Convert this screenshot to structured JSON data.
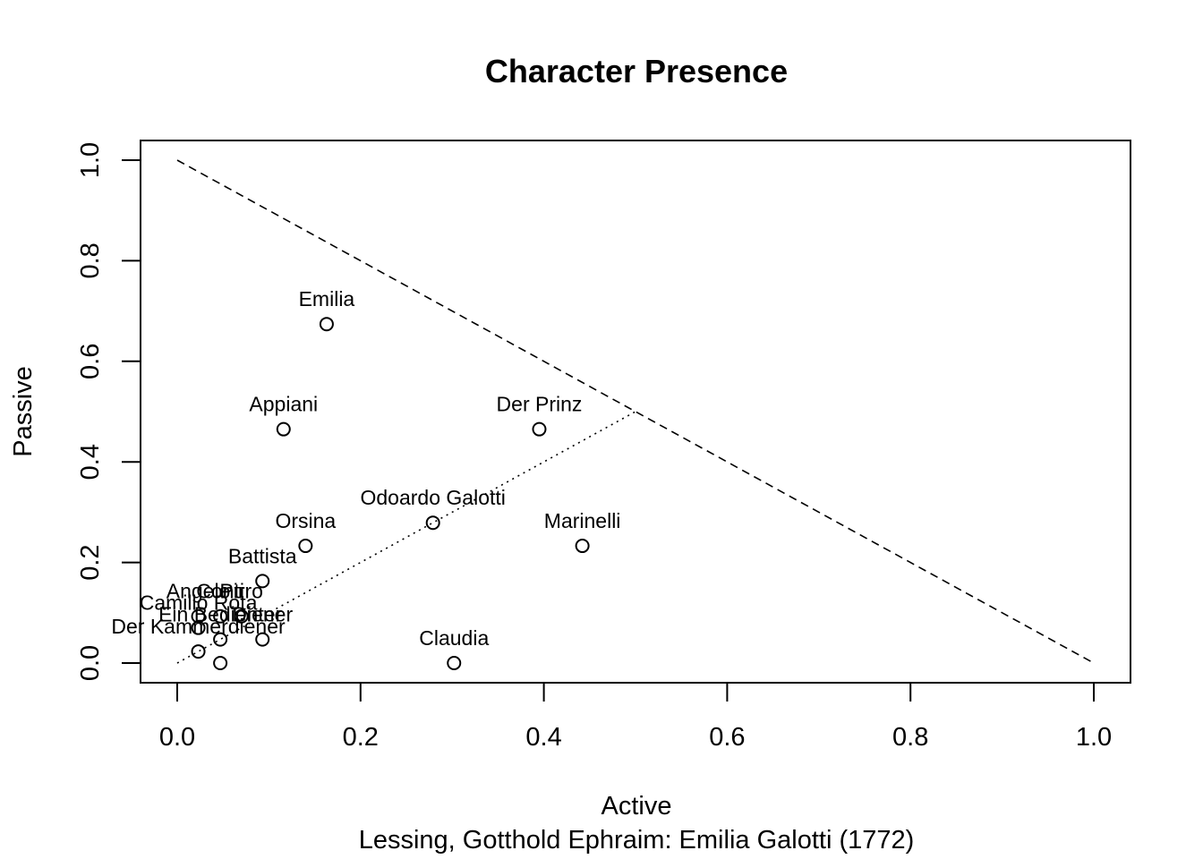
{
  "chart_data": {
    "type": "scatter",
    "title": "Character Presence",
    "xlabel": "Active",
    "ylabel": "Passive",
    "subtitle": "Lessing, Gotthold Ephraim: Emilia Galotti (1772)",
    "xlim": [
      0,
      1
    ],
    "ylim": [
      0,
      1
    ],
    "x_ticks": [
      "0.0",
      "0.2",
      "0.4",
      "0.6",
      "0.8",
      "1.0"
    ],
    "y_ticks": [
      "0.0",
      "0.2",
      "0.4",
      "0.6",
      "0.8",
      "1.0"
    ],
    "grid": false,
    "reference_lines": [
      {
        "style": "dashed",
        "from": [
          0,
          1
        ],
        "to": [
          1,
          0
        ]
      },
      {
        "style": "dotted",
        "from": [
          0,
          0
        ],
        "to": [
          0.5,
          0.5
        ]
      }
    ],
    "points": [
      {
        "label": "Emilia",
        "x": 0.163,
        "y": 0.674
      },
      {
        "label": "Appiani",
        "x": 0.116,
        "y": 0.465
      },
      {
        "label": "Der Prinz",
        "x": 0.395,
        "y": 0.465
      },
      {
        "label": "Odoardo Galotti",
        "x": 0.279,
        "y": 0.279
      },
      {
        "label": "Orsina",
        "x": 0.14,
        "y": 0.233
      },
      {
        "label": "Marinelli",
        "x": 0.442,
        "y": 0.233
      },
      {
        "label": "Battista",
        "x": 0.093,
        "y": 0.163
      },
      {
        "label": "Angelo",
        "x": 0.023,
        "y": 0.093
      },
      {
        "label": "Conti",
        "x": 0.047,
        "y": 0.093
      },
      {
        "label": "Pirro",
        "x": 0.07,
        "y": 0.093
      },
      {
        "label": "Camillo Rota",
        "x": 0.023,
        "y": 0.07
      },
      {
        "label": "Der Kammerdiener",
        "x": 0.023,
        "y": 0.023
      },
      {
        "label": "Ein Bedienter",
        "x": 0.047,
        "y": 0.047
      },
      {
        "label": "Diener",
        "x": 0.093,
        "y": 0.047
      },
      {
        "label": "Claudia",
        "x": 0.302,
        "y": 0.0
      },
      {
        "label": "",
        "x": 0.047,
        "y": 0.0
      }
    ]
  }
}
